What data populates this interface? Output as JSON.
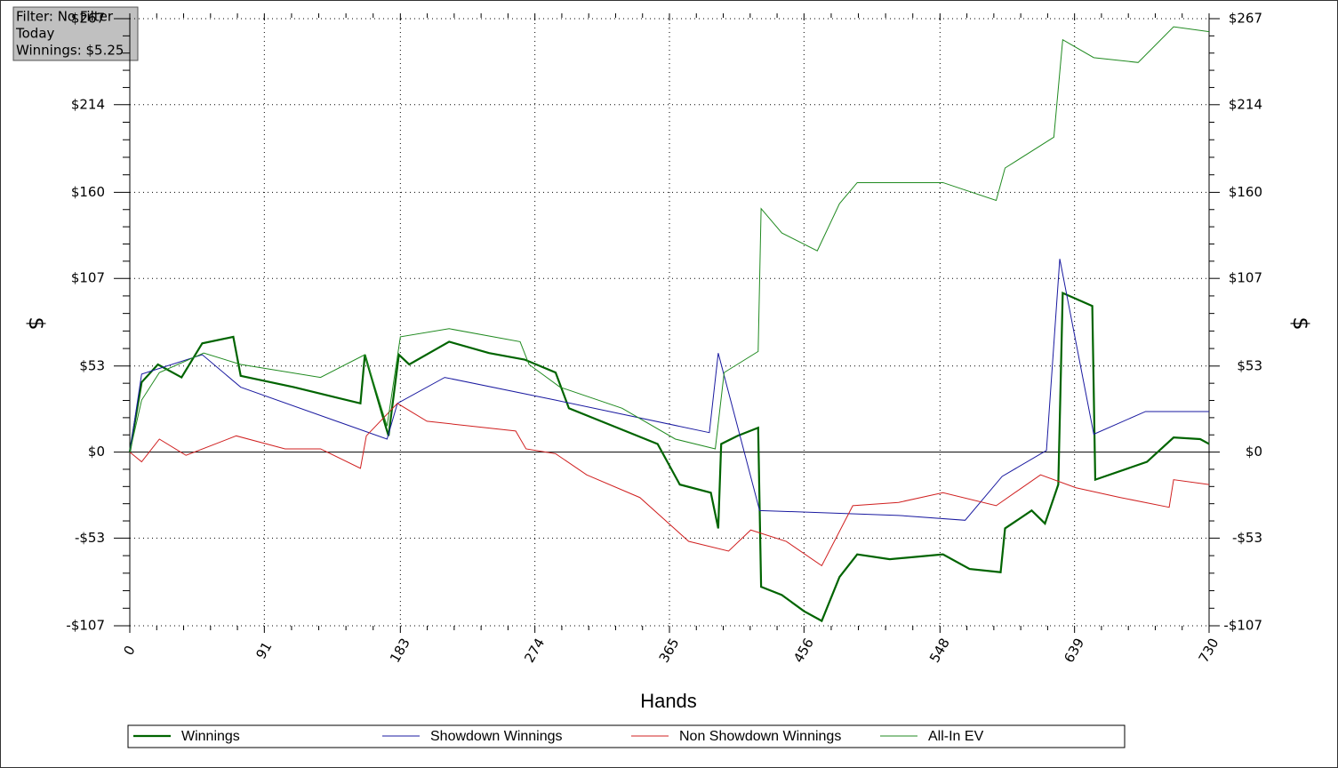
{
  "chart_data": {
    "type": "line",
    "info": [
      "Filter: No Filter",
      "Today",
      "Winnings: $5.25"
    ],
    "xlabel": "Hands",
    "ylabel": "$",
    "xlim": [
      0,
      730
    ],
    "xticks": [
      0,
      91,
      183,
      274,
      365,
      456,
      548,
      639,
      730
    ],
    "ylim": [
      -107,
      267
    ],
    "yticks": [
      {
        "value": -107,
        "label": "-$107"
      },
      {
        "value": -53,
        "label": "-$53"
      },
      {
        "value": 0,
        "label": "$0"
      },
      {
        "value": 53,
        "label": "$53"
      },
      {
        "value": 107,
        "label": "$107"
      },
      {
        "value": 160,
        "label": "$160"
      },
      {
        "value": 214,
        "label": "$214"
      },
      {
        "value": 267,
        "label": "$267"
      }
    ],
    "grid": true,
    "series": [
      {
        "name": "Winnings",
        "color": "#006400",
        "line_width": 2.2,
        "x": [
          0,
          8,
          19,
          35,
          49,
          70,
          75,
          111,
          156,
          159,
          173,
          175,
          182,
          189,
          216,
          243,
          267,
          288,
          297,
          327,
          357,
          372,
          393,
          398,
          400,
          411,
          425,
          427,
          441,
          456,
          468,
          480,
          492,
          514,
          550,
          568,
          589,
          592,
          610,
          619,
          628,
          631,
          651,
          653,
          688,
          706,
          724,
          730
        ],
        "values": [
          0,
          43,
          54,
          46,
          67,
          71,
          47,
          40,
          30,
          60,
          16,
          10,
          60,
          54,
          68,
          61,
          57,
          49,
          27,
          16,
          5,
          -20,
          -25,
          -47,
          5,
          10,
          15,
          -83,
          -88,
          -98,
          -104,
          -77,
          -63,
          -66,
          -63,
          -72,
          -74,
          -47,
          -36,
          -44,
          -20,
          98,
          90,
          -17,
          -6,
          9,
          8,
          5
        ]
      },
      {
        "name": "Showdown Winnings",
        "color": "#1a1aa0",
        "line_width": 1,
        "x": [
          0,
          8,
          49,
          75,
          174,
          181,
          213,
          288,
          392,
          398,
          426,
          520,
          565,
          590,
          620,
          629,
          652,
          687,
          730
        ],
        "values": [
          0,
          48,
          60,
          40,
          8,
          30,
          46,
          32,
          12,
          61,
          -36,
          -39,
          -42,
          -15,
          1,
          119,
          11,
          25,
          25
        ]
      },
      {
        "name": "Non Showdown Winnings",
        "color": "#d02020",
        "line_width": 1,
        "x": [
          0,
          8,
          20,
          38,
          72,
          105,
          129,
          156,
          160,
          181,
          201,
          261,
          268,
          288,
          309,
          345,
          378,
          405,
          420,
          444,
          468,
          489,
          520,
          550,
          586,
          616,
          640,
          670,
          703,
          706,
          730
        ],
        "values": [
          0,
          -6,
          8,
          -2,
          10,
          2,
          2,
          -10,
          10,
          30,
          19,
          13,
          2,
          -1,
          -14,
          -28,
          -55,
          -61,
          -48,
          -55,
          -70,
          -33,
          -31,
          -25,
          -33,
          -14,
          -22,
          -28,
          -34,
          -17,
          -20
        ]
      },
      {
        "name": "All-In EV",
        "color": "#208a20",
        "line_width": 1,
        "x": [
          0,
          8,
          20,
          50,
          75,
          129,
          159,
          174,
          183,
          216,
          264,
          270,
          291,
          333,
          369,
          396,
          402,
          425,
          427,
          441,
          465,
          480,
          492,
          550,
          586,
          592,
          625,
          631,
          652,
          682,
          706,
          730
        ],
        "values": [
          0,
          32,
          49,
          61,
          54,
          46,
          60,
          16,
          71,
          76,
          68,
          54,
          40,
          27,
          8,
          2,
          49,
          62,
          150,
          135,
          124,
          153,
          166,
          166,
          155,
          175,
          194,
          254,
          243,
          240,
          262,
          259
        ]
      }
    ]
  }
}
